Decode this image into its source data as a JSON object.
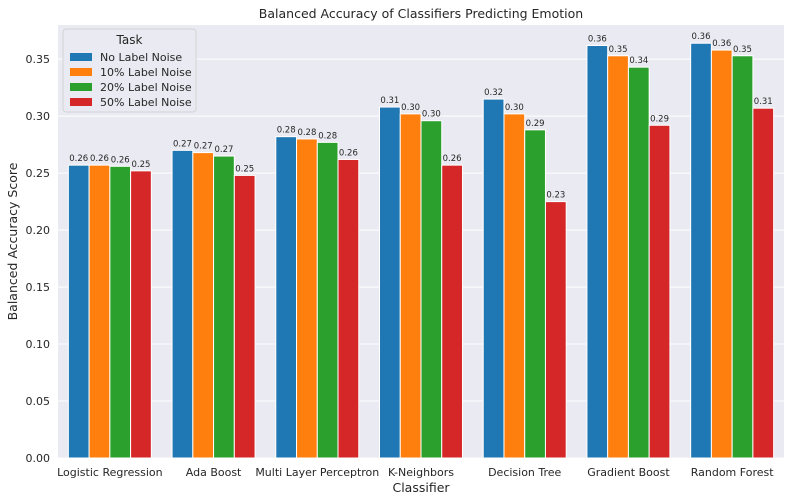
{
  "chart_data": {
    "type": "bar",
    "title": "Balanced Accuracy of Classifiers Predicting Emotion",
    "xlabel": "Classifier",
    "ylabel": "Balanced Accuracy Score",
    "ylim": [
      0,
      0.38
    ],
    "yticks": [
      0.0,
      0.05,
      0.1,
      0.15,
      0.2,
      0.25,
      0.3,
      0.35
    ],
    "ytick_labels": [
      "0.00",
      "0.05",
      "0.10",
      "0.15",
      "0.20",
      "0.25",
      "0.30",
      "0.35"
    ],
    "grid": true,
    "background": "#eaeaf2",
    "legend_title": "Task",
    "legend_position": "top-left",
    "categories": [
      "Logistic Regression",
      "Ada Boost",
      "Multi Layer Perceptron",
      "K-Neighbors",
      "Decision Tree",
      "Gradient Boost",
      "Random Forest"
    ],
    "series": [
      {
        "name": "No Label Noise",
        "color": "#1f77b4",
        "values": [
          0.257,
          0.27,
          0.282,
          0.308,
          0.315,
          0.362,
          0.364
        ]
      },
      {
        "name": "10% Label Noise",
        "color": "#ff7f0e",
        "values": [
          0.257,
          0.268,
          0.28,
          0.302,
          0.302,
          0.353,
          0.358
        ]
      },
      {
        "name": "20% Label Noise",
        "color": "#2ca02c",
        "values": [
          0.256,
          0.265,
          0.277,
          0.296,
          0.288,
          0.343,
          0.353
        ]
      },
      {
        "name": "50% Label Noise",
        "color": "#d62728",
        "values": [
          0.252,
          0.248,
          0.262,
          0.257,
          0.225,
          0.292,
          0.307
        ]
      }
    ],
    "data_labels": [
      [
        "0.26",
        "0.27",
        "0.28",
        "0.31",
        "0.32",
        "0.36",
        "0.36"
      ],
      [
        "0.26",
        "0.27",
        "0.28",
        "0.30",
        "0.30",
        "0.35",
        "0.36"
      ],
      [
        "0.26",
        "0.27",
        "0.28",
        "0.30",
        "0.29",
        "0.34",
        "0.35"
      ],
      [
        "0.25",
        "0.25",
        "0.26",
        "0.26",
        "0.23",
        "0.29",
        "0.31"
      ]
    ]
  }
}
